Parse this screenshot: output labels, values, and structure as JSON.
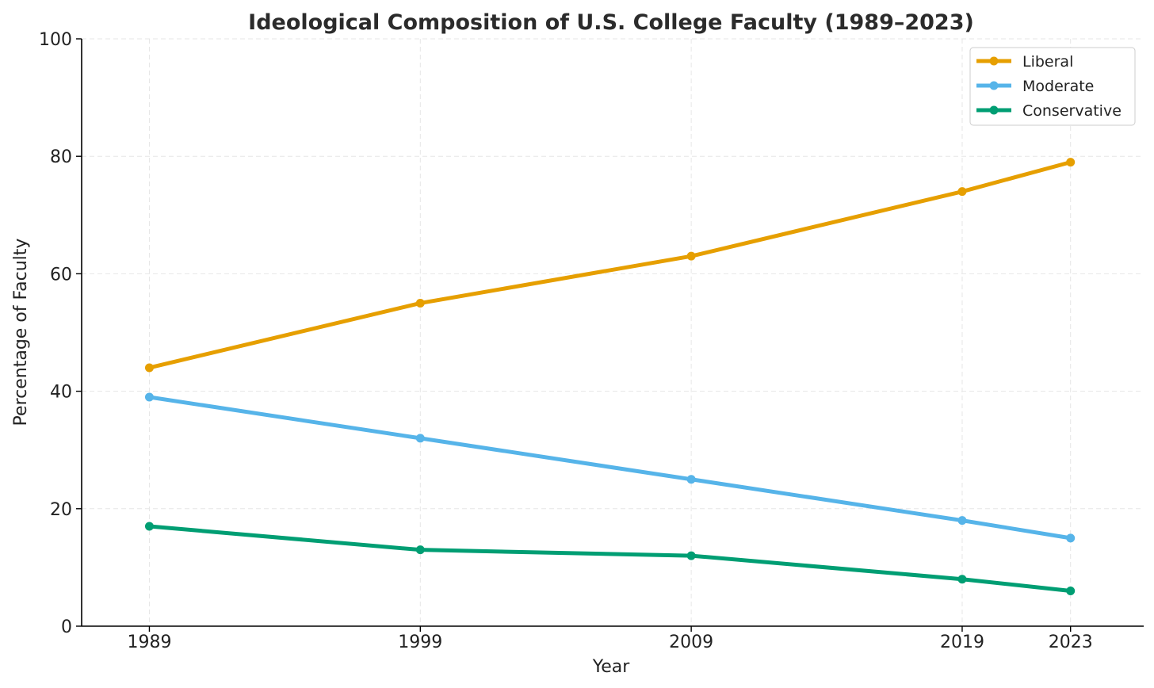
{
  "chart_data": {
    "type": "line",
    "title": "Ideological Composition of U.S. College Faculty (1989–2023)",
    "xlabel": "Year",
    "ylabel": "Percentage of Faculty",
    "x": [
      1989,
      1999,
      2009,
      2019,
      2023
    ],
    "x_tick_labels": [
      "1989",
      "1999",
      "2009",
      "2019",
      "2023"
    ],
    "xlim": [
      1986.5,
      2025.7
    ],
    "ylim": [
      0,
      100
    ],
    "y_ticks": [
      0,
      20,
      40,
      60,
      80,
      100
    ],
    "y_tick_labels": [
      "0",
      "20",
      "40",
      "60",
      "80",
      "100"
    ],
    "grid": true,
    "legend_position": "top-right",
    "series": [
      {
        "name": "Liberal",
        "color": "#E69F00",
        "values": [
          44,
          55,
          63,
          74,
          79
        ]
      },
      {
        "name": "Moderate",
        "color": "#56B4E9",
        "values": [
          39,
          32,
          25,
          18,
          15
        ]
      },
      {
        "name": "Conservative",
        "color": "#009E73",
        "values": [
          17,
          13,
          12,
          8,
          6
        ]
      }
    ]
  }
}
